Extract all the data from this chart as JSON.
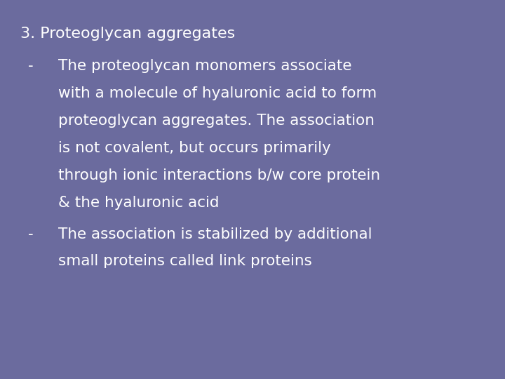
{
  "background_color": "#6b6b9e",
  "text_color": "#ffffff",
  "title_line": "3. Proteoglycan aggregates",
  "bullet1_lines": [
    "The proteoglycan monomers associate",
    "with a molecule of hyaluronic acid to form",
    "proteoglycan aggregates. The association",
    "is not covalent, but occurs primarily",
    "through ionic interactions b/w core protein",
    "& the hyaluronic acid"
  ],
  "bullet2_lines": [
    "The association is stabilized by additional",
    "small proteins called link proteins"
  ],
  "font_family": "DejaVu Sans",
  "title_fontsize": 16,
  "body_fontsize": 15.5,
  "figsize": [
    7.2,
    5.4
  ],
  "dpi": 100
}
